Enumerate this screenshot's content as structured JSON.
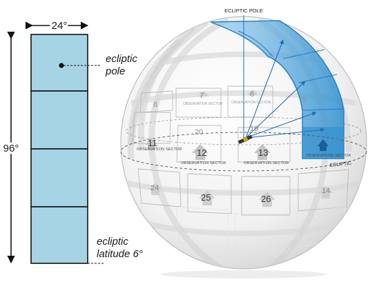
{
  "strip": {
    "width_label": "24°",
    "height_label": "96°",
    "pole_label": "ecliptic pole",
    "pole_label_line1": "ecliptic",
    "pole_label_line2": "pole",
    "latitude_label_line1": "ecliptic",
    "latitude_label_line2": "latitude 6°",
    "fill_color": "#a7d4e4",
    "border_color": "#111111"
  },
  "sphere": {
    "pole_label": "ECLIPTIC POLE",
    "ecliptic_label": "ECLIPTIC",
    "highlight_color": "#2f8fcf",
    "sectors": [
      {
        "num": "7",
        "caption": "OBSERVATION SECTOR"
      },
      {
        "num": "6",
        "caption": "OBSERVATION SECTOR"
      },
      {
        "num": "8",
        "caption": ""
      },
      {
        "num": "5",
        "caption": ""
      },
      {
        "num": "20",
        "caption": ""
      },
      {
        "num": "19",
        "caption": ""
      },
      {
        "num": "11",
        "caption": "OBSERVATION SECTOR"
      },
      {
        "num": "12",
        "caption": "OBSERVATION SECTOR"
      },
      {
        "num": "13",
        "caption": "OBSERVATION SECTOR"
      },
      {
        "num": "",
        "caption": "OBSERVATION SECTOR"
      },
      {
        "num": "24",
        "caption": ""
      },
      {
        "num": "25",
        "caption": ""
      },
      {
        "num": "26",
        "caption": ""
      },
      {
        "num": "14",
        "caption": ""
      }
    ]
  }
}
